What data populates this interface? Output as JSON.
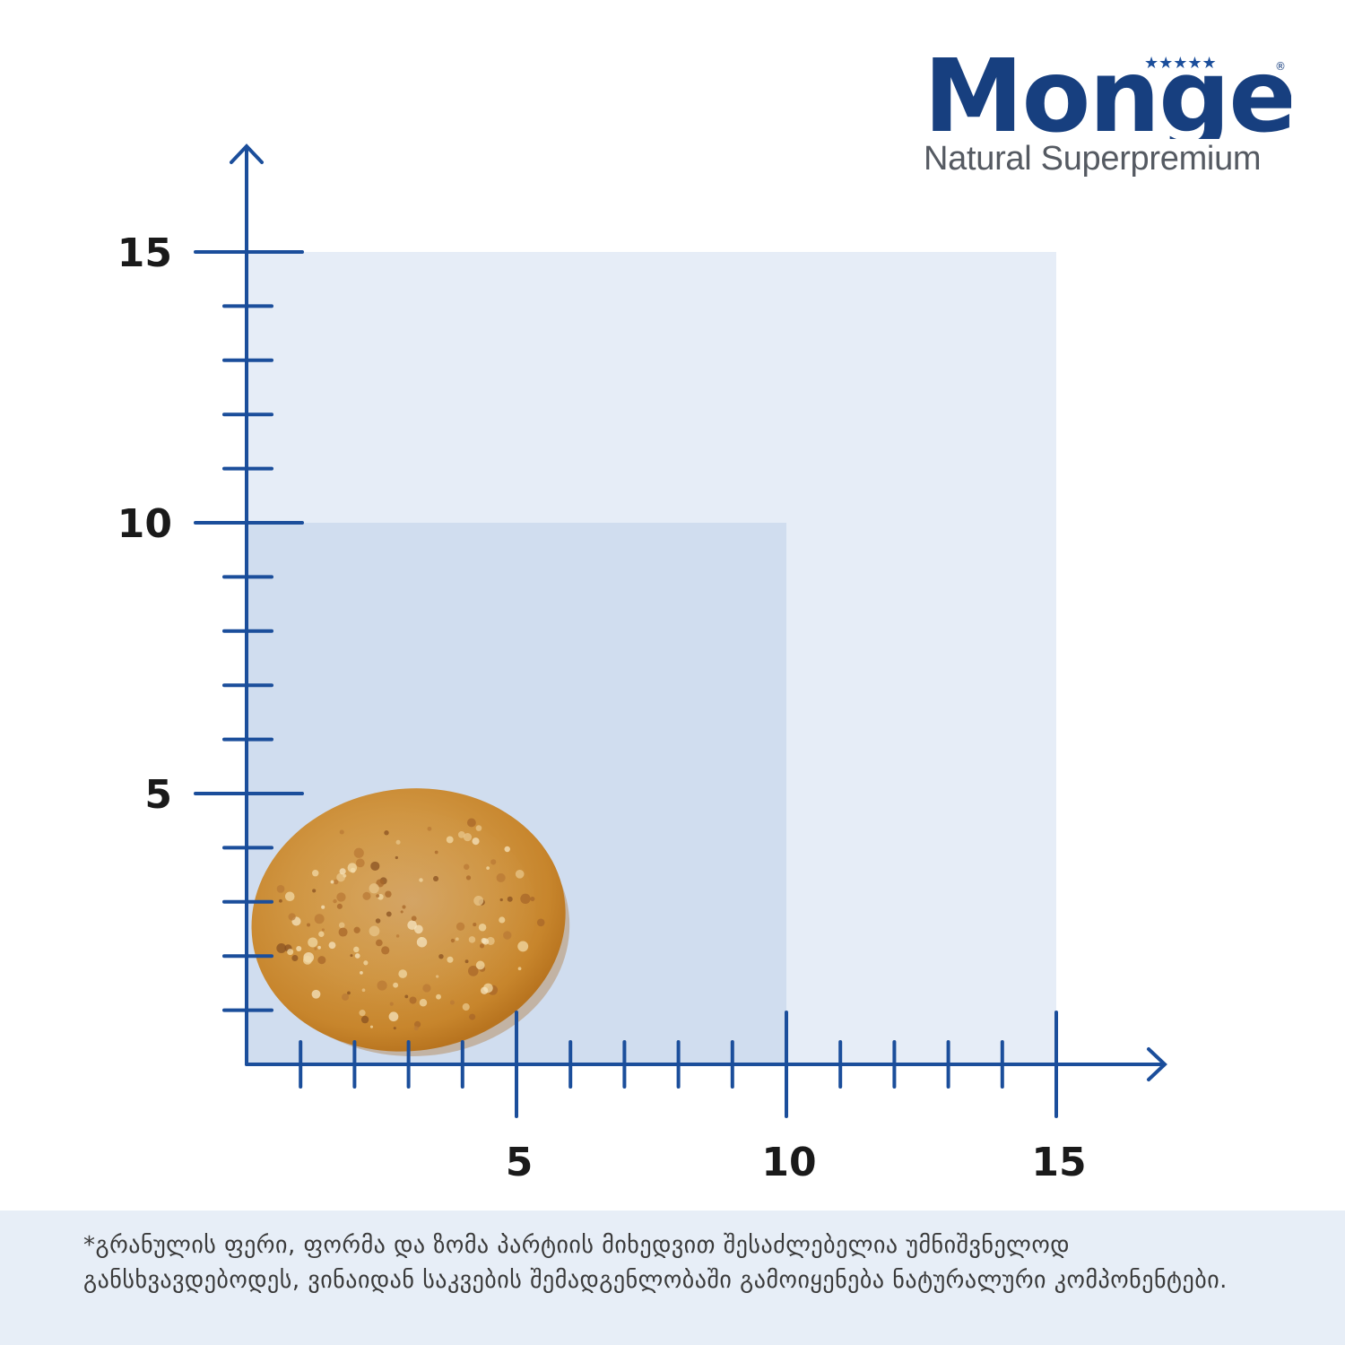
{
  "brand": {
    "name": "Monge",
    "tagline": "Natural Superpremium",
    "stars": "★★★★★",
    "registered": "®",
    "color": "#173f7f"
  },
  "chart_data": {
    "type": "area",
    "x_ticks": [
      5,
      10,
      15
    ],
    "y_ticks": [
      5,
      10,
      15
    ],
    "xlim": [
      0,
      17
    ],
    "ylim": [
      0,
      17
    ],
    "minor_tick_step": 1,
    "regions": [
      {
        "x": [
          0,
          15
        ],
        "y": [
          0,
          15
        ],
        "color": "#e6edf7"
      },
      {
        "x": [
          0,
          10
        ],
        "y": [
          0,
          10
        ],
        "color": "#d0ddef"
      }
    ],
    "kibble": {
      "diameter_x": [
        0,
        6
      ],
      "diameter_y": [
        0,
        5.5
      ]
    },
    "axis_color": "#1b4e9b"
  },
  "footer": {
    "disclaimer": "*გრანულის ფერი, ფორმა და ზომა პარტიის მიხედვით შესაძლებელია უმნიშვნელოდ განსხვავდებოდეს,  ვინაიდან საკვების შემადგენლობაში გამოიყენება ნატურალური კომპონენტები."
  }
}
